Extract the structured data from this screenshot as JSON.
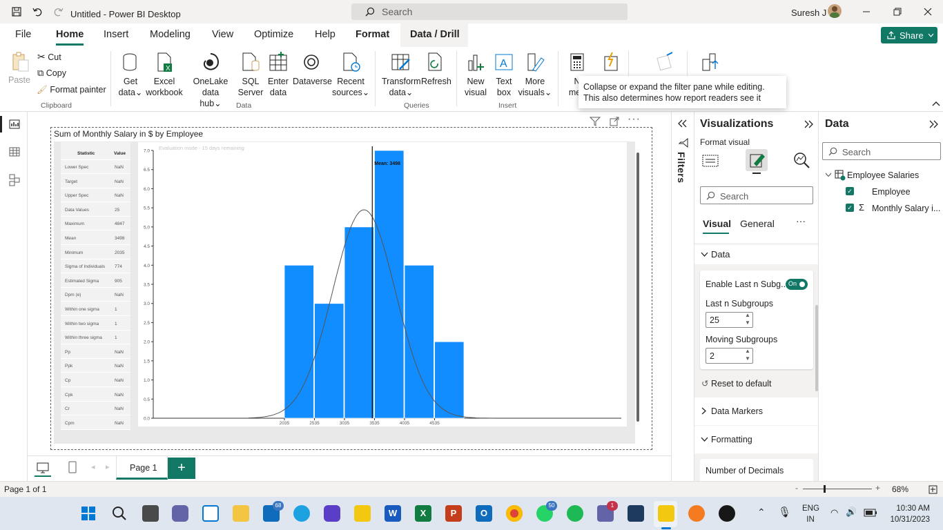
{
  "titlebar": {
    "title": "Untitled - Power BI Desktop",
    "search_placeholder": "Search",
    "user": "Suresh J"
  },
  "menu": {
    "tabs": [
      "File",
      "Home",
      "Insert",
      "Modeling",
      "View",
      "Optimize",
      "Help",
      "Format",
      "Data / Drill"
    ],
    "active": "Home",
    "share": "Share"
  },
  "ribbon": {
    "clipboard": {
      "paste": "Paste",
      "cut": "Cut",
      "copy": "Copy",
      "format_painter": "Format painter",
      "group": "Clipboard"
    },
    "data": {
      "get_data": [
        "Get",
        "data"
      ],
      "excel": [
        "Excel",
        "workbook"
      ],
      "onelake": [
        "OneLake data",
        "hub"
      ],
      "sql": [
        "SQL",
        "Server"
      ],
      "enter": [
        "Enter",
        "data"
      ],
      "dataverse": "Dataverse",
      "recent": [
        "Recent",
        "sources"
      ],
      "group": "Data"
    },
    "queries": {
      "transform": [
        "Transform",
        "data"
      ],
      "refresh": "Refresh",
      "group": "Queries"
    },
    "insert": {
      "new_visual": [
        "New",
        "visual"
      ],
      "text_box": [
        "Text",
        "box"
      ],
      "more_visuals": [
        "More",
        "visuals"
      ],
      "group": "Insert"
    },
    "calc": {
      "new_measure": [
        "N",
        "mea"
      ]
    }
  },
  "tooltip": "Collapse or expand the filter pane while editing. This also determines how report readers see it",
  "visual": {
    "title": "Sum of Monthly Salary in $ by Employee",
    "eval_text": "Evaluation mode - 15 days remaining",
    "stats_header": [
      "Statistic",
      "Value"
    ],
    "stats": [
      [
        "Lower Spec",
        "NaN"
      ],
      [
        "Target",
        "NaN"
      ],
      [
        "Upper Spec",
        "NaN"
      ],
      [
        "Data Values",
        "25"
      ],
      [
        "Maximum",
        "4847"
      ],
      [
        "Mean",
        "3498"
      ],
      [
        "Minimum",
        "2035"
      ],
      [
        "Sigma of Individuals",
        "774"
      ],
      [
        "Estimated Sigma",
        "905"
      ],
      [
        "Dpm (e)",
        "NaN"
      ],
      [
        "Within one sigma",
        "1"
      ],
      [
        "Within two sigma",
        "1"
      ],
      [
        "Within three sigma",
        "1"
      ],
      [
        "Pp",
        "NaN"
      ],
      [
        "Ppk",
        "NaN"
      ],
      [
        "Cp",
        "NaN"
      ],
      [
        "Cpk",
        "NaN"
      ],
      [
        "Cr",
        "NaN"
      ],
      [
        "Cpm",
        "NaN"
      ]
    ]
  },
  "chart_data": {
    "type": "bar",
    "categories": [
      "2035",
      "2535",
      "3035",
      "3535",
      "4035",
      "4535"
    ],
    "values": [
      4,
      3,
      5,
      7,
      4,
      2
    ],
    "mean": 3498,
    "mean_label": "Mean: 3498",
    "ylim": [
      0,
      7
    ],
    "yticks": [
      "0.0",
      "0.5",
      "1.0",
      "1.5",
      "2.0",
      "2.5",
      "3.0",
      "3.5",
      "4.0",
      "4.5",
      "5.0",
      "5.5",
      "6.0",
      "6.5",
      "7.0"
    ],
    "xlabel": "",
    "ylabel": "",
    "title": "",
    "bar_color": "#118dff",
    "normal_curve_peak": 5.45
  },
  "filters": {
    "label": "Filters"
  },
  "viz": {
    "title": "Visualizations",
    "subtitle": "Format visual",
    "search": "Search",
    "tabs": [
      "Visual",
      "General"
    ],
    "data_section": "Data",
    "enable_last_n": "Enable Last n Subg...",
    "toggle": "On",
    "last_n_label": "Last n Subgroups",
    "last_n_value": "25",
    "moving_label": "Moving Subgroups",
    "moving_value": "2",
    "reset": "Reset to default",
    "data_markers": "Data Markers",
    "formatting": "Formatting",
    "decimals": "Number of Decimals"
  },
  "datapane": {
    "title": "Data",
    "search": "Search",
    "table": "Employee Salaries",
    "fields": [
      "Employee",
      "Monthly Salary i..."
    ]
  },
  "pages": {
    "current": "Page 1",
    "status": "Page 1 of 1",
    "zoom": "68%"
  },
  "taskbar": {
    "lang": [
      "ENG",
      "IN"
    ],
    "time": "10:30 AM",
    "date": "10/31/2023",
    "badge_mail": "68",
    "badge_whatsapp": "50",
    "badge_teams": "1"
  }
}
